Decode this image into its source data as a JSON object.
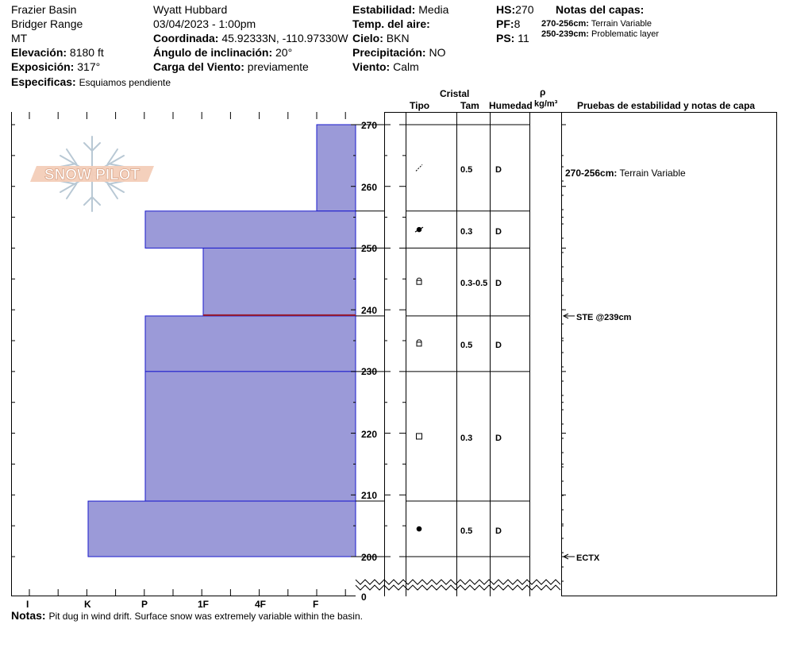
{
  "header": {
    "location": "Frazier Basin",
    "range": "Bridger Range",
    "state": "MT",
    "elevation_label": "Elevación:",
    "elevation_value": "8180 ft",
    "aspect_label": "Exposición:",
    "aspect_value": "317°",
    "specifics_label": "Especificas:",
    "specifics_value": "Esquiamos pendiente",
    "observer": "Wyatt Hubbard",
    "datetime": "03/04/2023 - 1:00pm",
    "coord_label": "Coordinada:",
    "coord_value": "45.92333N, -110.97330W",
    "slope_label": "Ángulo de inclinación:",
    "slope_value": "20°",
    "wind_load_label": "Carga del Viento:",
    "wind_load_value": "previamente",
    "stability_label": "Estabilidad:",
    "stability_value": "Media",
    "air_temp_label": "Temp. del aire:",
    "air_temp_value": "",
    "sky_label": "Cielo:",
    "sky_value": "BKN",
    "precip_label": "Precipitación:",
    "precip_value": "NO",
    "wind_label": "Viento:",
    "wind_value": "Calm",
    "hs_label": "HS:",
    "hs_value": "270",
    "pf_label": "PF:",
    "pf_value": "8",
    "ps_label": "PS:",
    "ps_value": "11",
    "layer_notes_title": "Notas del capas:",
    "layer_notes": [
      {
        "range": "270-256cm:",
        "text": "Terrain Variable"
      },
      {
        "range": "250-239cm:",
        "text": "Problematic layer"
      }
    ]
  },
  "logo_text": "SNOW PILOT",
  "columns": {
    "cristal": "Cristal",
    "tipo": "Tipo",
    "tam": "Tam",
    "humedad": "Humedad",
    "rho": "ρ",
    "density_unit": "kg/m³",
    "tests": "Pruebas de estabilidad y notas de capa"
  },
  "hardness_labels": [
    "I",
    "K",
    "P",
    "1F",
    "4F",
    "F"
  ],
  "depth_ticks": [
    "270",
    "260",
    "250",
    "240",
    "230",
    "220",
    "210",
    "200",
    "0"
  ],
  "chart_data": {
    "type": "bar",
    "xlabel": "",
    "ylabel": "",
    "depth_axis": [
      200,
      270
    ],
    "hardness_scale": [
      "I",
      "K",
      "P",
      "1F",
      "4F",
      "F"
    ],
    "layers": [
      {
        "top": 270,
        "bottom": 256,
        "hardness": "F",
        "crystal": "decomposing",
        "size": "0.5",
        "moisture": "D"
      },
      {
        "top": 256,
        "bottom": 250,
        "hardness": "P",
        "crystal": "rimed",
        "size": "0.3",
        "moisture": "D"
      },
      {
        "top": 250,
        "bottom": 239,
        "hardness": "1F",
        "crystal": "faceted-rounded",
        "size": "0.3-0.5",
        "moisture": "D"
      },
      {
        "top": 239,
        "bottom": 230,
        "hardness": "P",
        "crystal": "faceted-rounded",
        "size": "0.5",
        "moisture": "D"
      },
      {
        "top": 230,
        "bottom": 209,
        "hardness": "P",
        "crystal": "faceted",
        "size": "0.3",
        "moisture": "D"
      },
      {
        "top": 209,
        "bottom": 200,
        "hardness": "K",
        "crystal": "rounded",
        "size": "0.5",
        "moisture": "D"
      }
    ],
    "weak_layer_depth": 239
  },
  "layer_comment": {
    "range": "270-256cm:",
    "text": "Terrain Variable"
  },
  "tests": [
    {
      "depth": 239,
      "label": "STE @239cm"
    },
    {
      "depth": 200,
      "label": "ECTX"
    }
  ],
  "notes": {
    "label": "Notas:",
    "text": "Pit dug in wind drift. Surface snow was extremely variable within the basin."
  }
}
